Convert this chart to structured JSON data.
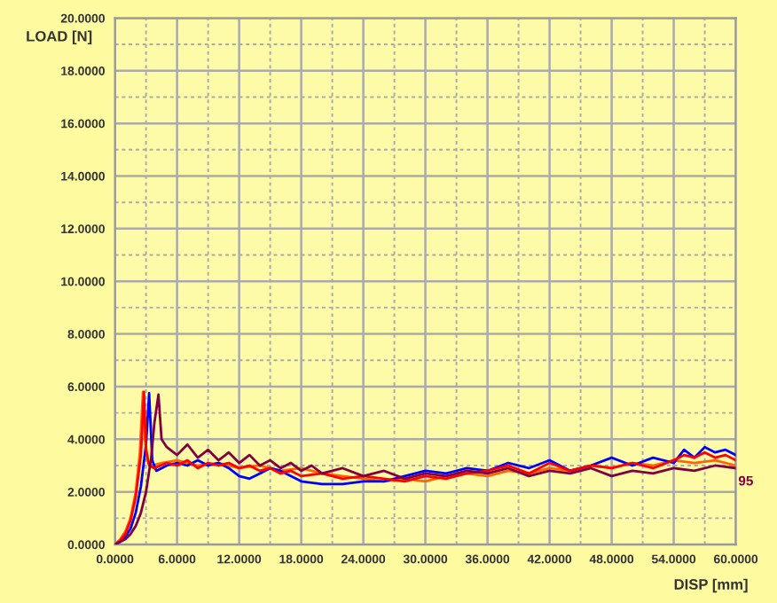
{
  "chart_data": {
    "type": "line",
    "xlabel": "DISP [mm]",
    "ylabel": "LOAD [N]",
    "xlim": [
      0,
      60
    ],
    "ylim": [
      0,
      20
    ],
    "xticks": [
      {
        "value": 0,
        "label": "0.0000"
      },
      {
        "value": 3,
        "label": null
      },
      {
        "value": 6,
        "label": "6.0000"
      },
      {
        "value": 9,
        "label": null
      },
      {
        "value": 12,
        "label": "12.0000"
      },
      {
        "value": 15,
        "label": null
      },
      {
        "value": 18,
        "label": "18.0000"
      },
      {
        "value": 21,
        "label": null
      },
      {
        "value": 24,
        "label": "24.0000"
      },
      {
        "value": 27,
        "label": null
      },
      {
        "value": 30,
        "label": "30.0000"
      },
      {
        "value": 33,
        "label": null
      },
      {
        "value": 36,
        "label": "36.0000"
      },
      {
        "value": 39,
        "label": null
      },
      {
        "value": 42,
        "label": "42.0000"
      },
      {
        "value": 45,
        "label": null
      },
      {
        "value": 48,
        "label": "48.0000"
      },
      {
        "value": 51,
        "label": null
      },
      {
        "value": 54,
        "label": "54.0000"
      },
      {
        "value": 57,
        "label": null
      },
      {
        "value": 60,
        "label": "60.0000"
      }
    ],
    "yticks": [
      {
        "value": 0,
        "label": "0.0000"
      },
      {
        "value": 1,
        "label": null
      },
      {
        "value": 2,
        "label": "2.0000"
      },
      {
        "value": 3,
        "label": null
      },
      {
        "value": 4,
        "label": "4.0000"
      },
      {
        "value": 5,
        "label": null
      },
      {
        "value": 6,
        "label": "6.0000"
      },
      {
        "value": 7,
        "label": null
      },
      {
        "value": 8,
        "label": "8.0000"
      },
      {
        "value": 9,
        "label": null
      },
      {
        "value": 10,
        "label": "10.0000"
      },
      {
        "value": 11,
        "label": null
      },
      {
        "value": 12,
        "label": "12.0000"
      },
      {
        "value": 13,
        "label": null
      },
      {
        "value": 14,
        "label": "14.0000"
      },
      {
        "value": 15,
        "label": null
      },
      {
        "value": 16,
        "label": "16.0000"
      },
      {
        "value": 17,
        "label": null
      },
      {
        "value": 18,
        "label": "18.0000"
      },
      {
        "value": 19,
        "label": null
      },
      {
        "value": 20,
        "label": "20.0000"
      }
    ],
    "grid": true,
    "marker": "none",
    "line_style": "solid",
    "annotations": [
      {
        "text": "95",
        "x": 60,
        "y": 2.9
      }
    ],
    "series": [
      {
        "color": "#ff6600",
        "x": [
          0,
          0.5,
          1,
          1.5,
          2,
          2.4,
          2.7,
          2.9,
          3.2,
          3.6,
          4.5,
          6,
          8,
          10,
          12,
          14,
          16,
          18,
          20,
          22,
          24,
          26,
          28,
          30,
          32,
          34,
          36,
          38,
          40,
          42,
          44,
          46,
          48,
          50,
          52,
          54,
          56,
          58,
          60
        ],
        "values": [
          0,
          0.2,
          0.5,
          1.0,
          2.0,
          3.5,
          5.8,
          4.0,
          3.1,
          3.0,
          3.1,
          3.2,
          3.0,
          3.1,
          2.9,
          3.0,
          2.8,
          2.9,
          2.7,
          2.6,
          2.5,
          2.4,
          2.5,
          2.4,
          2.6,
          2.7,
          2.6,
          2.8,
          2.7,
          2.9,
          2.8,
          3.0,
          2.9,
          3.1,
          3.0,
          3.2,
          3.1,
          3.2,
          3.0
        ]
      },
      {
        "color": "#0000ff",
        "x": [
          0,
          0.5,
          1,
          1.5,
          2,
          2.5,
          3,
          3.3,
          3.6,
          4,
          5,
          6,
          7,
          8,
          9,
          10,
          11,
          12,
          13,
          14,
          15,
          16,
          18,
          20,
          22,
          24,
          26,
          28,
          30,
          32,
          34,
          36,
          38,
          40,
          42,
          44,
          46,
          48,
          50,
          52,
          54,
          55,
          56,
          57,
          58,
          59,
          60
        ],
        "values": [
          0,
          0.1,
          0.3,
          0.6,
          1.2,
          2.2,
          3.8,
          5.75,
          3.2,
          2.8,
          3.0,
          3.1,
          3.0,
          3.2,
          3.0,
          3.1,
          2.9,
          2.6,
          2.5,
          2.7,
          2.9,
          2.8,
          2.4,
          2.3,
          2.3,
          2.4,
          2.4,
          2.6,
          2.8,
          2.7,
          2.9,
          2.8,
          3.1,
          2.9,
          3.2,
          2.8,
          3.0,
          3.3,
          3.0,
          3.3,
          3.1,
          3.6,
          3.3,
          3.7,
          3.5,
          3.6,
          3.4
        ]
      },
      {
        "color": "#ff0000",
        "x": [
          0,
          0.5,
          1,
          1.5,
          2,
          2.5,
          2.8,
          3.0,
          3.3,
          3.8,
          5,
          6,
          7,
          8,
          9,
          10,
          11,
          12,
          13,
          14,
          15,
          16,
          17,
          18,
          20,
          22,
          24,
          26,
          28,
          30,
          32,
          34,
          36,
          38,
          40,
          42,
          44,
          46,
          48,
          50,
          52,
          54,
          55,
          56,
          57,
          58,
          59,
          60
        ],
        "values": [
          0,
          0.15,
          0.4,
          0.9,
          1.8,
          3.4,
          5.8,
          3.6,
          3.0,
          2.9,
          3.1,
          3.0,
          3.2,
          2.9,
          3.1,
          3.0,
          3.1,
          2.9,
          3.0,
          2.8,
          2.9,
          2.7,
          2.8,
          2.6,
          2.7,
          2.5,
          2.6,
          2.5,
          2.4,
          2.6,
          2.5,
          2.7,
          2.8,
          3.0,
          2.7,
          3.1,
          2.8,
          3.0,
          2.9,
          3.1,
          2.9,
          3.2,
          3.4,
          3.3,
          3.5,
          3.3,
          3.4,
          3.2
        ]
      },
      {
        "color": "#800040",
        "x": [
          0,
          0.5,
          1,
          1.5,
          2,
          2.5,
          3,
          3.5,
          3.8,
          4.2,
          4.5,
          5,
          6,
          7,
          8,
          9,
          10,
          11,
          12,
          13,
          14,
          15,
          16,
          17,
          18,
          19,
          20,
          22,
          24,
          26,
          28,
          30,
          32,
          34,
          36,
          38,
          40,
          42,
          44,
          46,
          48,
          50,
          52,
          54,
          56,
          58,
          60
        ],
        "values": [
          0,
          0.1,
          0.2,
          0.4,
          0.7,
          1.2,
          2.0,
          3.3,
          4.6,
          5.7,
          4.0,
          3.7,
          3.4,
          3.8,
          3.3,
          3.6,
          3.2,
          3.5,
          3.1,
          3.4,
          3.0,
          3.2,
          2.9,
          3.1,
          2.8,
          3.0,
          2.7,
          2.9,
          2.6,
          2.8,
          2.5,
          2.7,
          2.6,
          2.8,
          2.7,
          2.9,
          2.6,
          2.8,
          2.7,
          2.9,
          2.6,
          2.8,
          2.7,
          2.9,
          2.8,
          3.0,
          2.9
        ]
      }
    ]
  }
}
